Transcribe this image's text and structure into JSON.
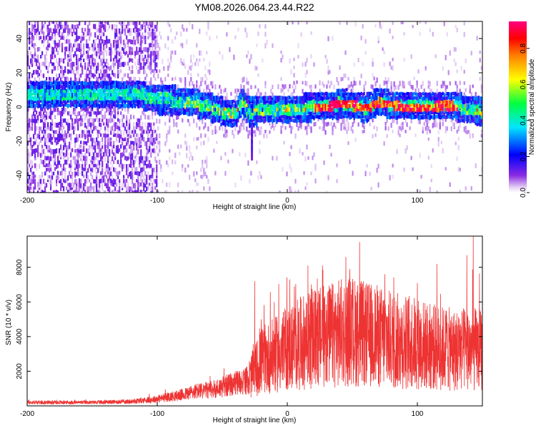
{
  "figure_title": "YM08.2026.064.23.44.R22",
  "colors": {
    "snr_line": "#ee3333",
    "frame": "#000000"
  },
  "chart_data": [
    {
      "type": "heatmap",
      "title": "YM08.2026.064.23.44.R22",
      "xlabel": "Height of straight line (km)",
      "ylabel": "Frequency (Hz)",
      "xlim": [
        -200,
        150
      ],
      "ylim": [
        -50,
        50
      ],
      "xticks": [
        -200,
        -100,
        0,
        100
      ],
      "xtick_labels": [
        "-200",
        "-100",
        "0",
        "100"
      ],
      "yticks": [
        -40,
        -20,
        0,
        20,
        40
      ],
      "ytick_labels": [
        "-40",
        "-20",
        "0",
        "20",
        "40"
      ],
      "colorbar": {
        "label": "Normalized spectral amplitude",
        "range": [
          0.0,
          0.95
        ],
        "ticks": [
          0.0,
          0.2,
          0.4,
          0.6,
          0.8
        ],
        "tick_labels": [
          "0.0",
          "0.2",
          "0.4",
          "0.6",
          "0.8"
        ],
        "colormap": "rainbow (violet-blue-cyan-green-yellow-red-magenta)"
      },
      "band_center_hz": [
        [
          -200,
          8
        ],
        [
          -190,
          8
        ],
        [
          -180,
          7
        ],
        [
          -170,
          8
        ],
        [
          -160,
          8
        ],
        [
          -150,
          7
        ],
        [
          -140,
          7
        ],
        [
          -130,
          8
        ],
        [
          -120,
          8
        ],
        [
          -110,
          6
        ],
        [
          -100,
          4
        ],
        [
          -90,
          4
        ],
        [
          -80,
          3
        ],
        [
          -70,
          2
        ],
        [
          -60,
          0
        ],
        [
          -50,
          -3
        ],
        [
          -40,
          -4
        ],
        [
          -35,
          3
        ],
        [
          -30,
          -3
        ],
        [
          -20,
          -2
        ],
        [
          -10,
          -2
        ],
        [
          0,
          -1
        ],
        [
          10,
          -1
        ],
        [
          20,
          0
        ],
        [
          30,
          0
        ],
        [
          40,
          2
        ],
        [
          50,
          1
        ],
        [
          60,
          -1
        ],
        [
          70,
          3
        ],
        [
          80,
          1
        ],
        [
          90,
          0
        ],
        [
          100,
          0
        ],
        [
          110,
          0
        ],
        [
          120,
          1
        ],
        [
          130,
          0
        ],
        [
          140,
          -2
        ],
        [
          150,
          -3
        ]
      ],
      "band_half_width_hz": 6,
      "peak_region_km": [
        20,
        130
      ],
      "peak_amplitude": 0.95
    },
    {
      "type": "line",
      "xlabel": "Height of straight line (km)",
      "ylabel": "SNR (10 * v/v)",
      "xlim": [
        -200,
        150
      ],
      "ylim": [
        0,
        9800
      ],
      "xticks": [
        -200,
        -100,
        0,
        100
      ],
      "xtick_labels": [
        "-200",
        "-100",
        "0",
        "100"
      ],
      "yticks": [
        2000,
        4000,
        6000,
        8000
      ],
      "ytick_labels": [
        "2000",
        "4000",
        "6000",
        "8000"
      ],
      "series": [
        {
          "name": "SNR",
          "envelope_mean": [
            [
              -200,
              200
            ],
            [
              -150,
              200
            ],
            [
              -120,
              250
            ],
            [
              -100,
              400
            ],
            [
              -80,
              650
            ],
            [
              -70,
              850
            ],
            [
              -60,
              900
            ],
            [
              -50,
              1100
            ],
            [
              -40,
              1300
            ],
            [
              -30,
              1500
            ],
            [
              -25,
              2000
            ],
            [
              -20,
              2600
            ],
            [
              -10,
              2900
            ],
            [
              0,
              3300
            ],
            [
              10,
              3600
            ],
            [
              20,
              3900
            ],
            [
              30,
              4000
            ],
            [
              40,
              4200
            ],
            [
              50,
              4300
            ],
            [
              60,
              4100
            ],
            [
              70,
              4000
            ],
            [
              80,
              3800
            ],
            [
              90,
              3700
            ],
            [
              100,
              3600
            ],
            [
              110,
              3400
            ],
            [
              120,
              3300
            ],
            [
              130,
              3200
            ],
            [
              140,
              3300
            ],
            [
              150,
              3200
            ]
          ],
          "peaks": [
            [
              -25,
              7200
            ],
            [
              -20,
              5000
            ],
            [
              -10,
              6000
            ],
            [
              2,
              7300
            ],
            [
              15,
              5900
            ],
            [
              27,
              8100
            ],
            [
              45,
              8600
            ],
            [
              48,
              7900
            ],
            [
              75,
              7600
            ],
            [
              100,
              7100
            ],
            [
              115,
              8200
            ],
            [
              138,
              8700
            ],
            [
              143,
              9800
            ]
          ]
        }
      ]
    }
  ]
}
